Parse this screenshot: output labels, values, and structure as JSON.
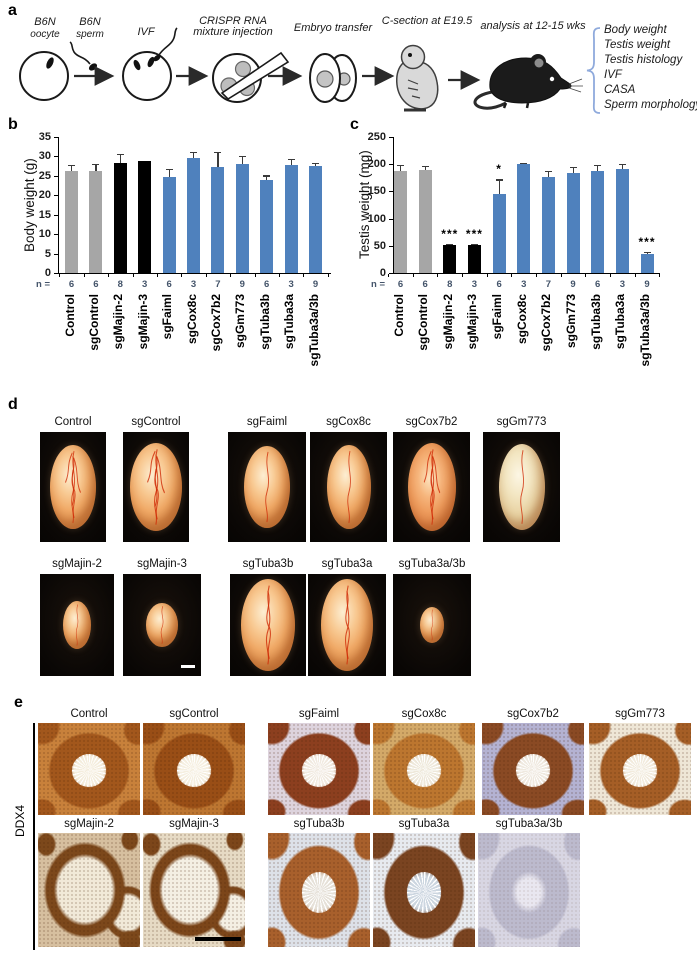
{
  "panel_a": {
    "letter": "a",
    "labels": {
      "oocyte1": "B6N",
      "oocyte2": "oocyte",
      "sperm1": "B6N",
      "sperm2": "sperm",
      "ivf": "IVF",
      "crispr1": "CRISPR RNA",
      "crispr2": "mixture injection",
      "embryo": "Embryo transfer",
      "csection": "C-section at E19.5",
      "analysis": "analysis at 12-15 wks"
    },
    "analysis_list": [
      "Body weight",
      "Testis weight",
      "Testis histology",
      "IVF",
      "CASA",
      "Sperm morphology"
    ],
    "brace_color": "#8FAADC"
  },
  "chart_data": [
    {
      "type": "bar",
      "panel_letter": "b",
      "title": "",
      "ylabel": "Body weight (g)",
      "ylim": [
        0,
        35
      ],
      "yticks": [
        0,
        5,
        10,
        15,
        20,
        25,
        30,
        35
      ],
      "n_prefix": "n =",
      "categories": [
        "Control",
        "sgControl",
        "sgMajin-2",
        "sgMajin-3",
        "sgFaiml",
        "sgCox8c",
        "sgCox7b2",
        "sgGm773",
        "sgTuba3b",
        "sgTuba3a",
        "sgTuba3a/3b"
      ],
      "values": [
        26.2,
        26.2,
        28.3,
        28.8,
        24.7,
        29.6,
        27.3,
        28.0,
        24.0,
        27.8,
        27.6
      ],
      "errors": [
        1.7,
        1.9,
        2.4,
        0,
        2.0,
        1.6,
        3.9,
        2.1,
        1.1,
        1.5,
        0.7
      ],
      "n": [
        6,
        6,
        8,
        3,
        6,
        3,
        7,
        9,
        6,
        3,
        9
      ],
      "bar_colors": [
        "#A6A6A6",
        "#A6A6A6",
        "#000000",
        "#000000",
        "#4F81BD",
        "#4F81BD",
        "#4F81BD",
        "#4F81BD",
        "#4F81BD",
        "#4F81BD",
        "#4F81BD"
      ],
      "significance": [
        "",
        "",
        "",
        "",
        "",
        "",
        "",
        "",
        "",
        "",
        ""
      ],
      "grid": false,
      "legend": "none"
    },
    {
      "type": "bar",
      "panel_letter": "c",
      "title": "",
      "ylabel": "Testis weight (mg)",
      "ylim": [
        0,
        250
      ],
      "yticks": [
        0,
        50,
        100,
        150,
        200,
        250
      ],
      "n_prefix": "n =",
      "categories": [
        "Control",
        "sgControl",
        "sgMajin-2",
        "sgMajin-3",
        "sgFaiml",
        "sgCox8c",
        "sgCox7b2",
        "sgGm773",
        "sgTuba3b",
        "sgTuba3a",
        "sgTuba3a/3b"
      ],
      "values": [
        188,
        190,
        51,
        52,
        146,
        201,
        176,
        183,
        188,
        192,
        35
      ],
      "errors": [
        10,
        7,
        2,
        2,
        26,
        2,
        11,
        12,
        10,
        9,
        4
      ],
      "n": [
        6,
        6,
        8,
        3,
        6,
        3,
        7,
        9,
        6,
        3,
        9
      ],
      "bar_colors": [
        "#A6A6A6",
        "#A6A6A6",
        "#000000",
        "#000000",
        "#4F81BD",
        "#4F81BD",
        "#4F81BD",
        "#4F81BD",
        "#4F81BD",
        "#4F81BD",
        "#4F81BD"
      ],
      "significance": [
        "",
        "",
        "***",
        "***",
        "*",
        "",
        "",
        "",
        "",
        "",
        "***"
      ],
      "grid": false,
      "legend": "none"
    }
  ],
  "panel_d": {
    "letter": "d",
    "row1": [
      {
        "label": "Control",
        "size": [
          46,
          84
        ],
        "tone": "warm",
        "vessels": 3
      },
      {
        "label": "sgControl",
        "size": [
          52,
          88
        ],
        "tone": "warm",
        "vessels": 3
      },
      {
        "label": "sgFaiml",
        "size": [
          46,
          82
        ],
        "tone": "warm",
        "vessels": 1
      },
      {
        "label": "sgCox8c",
        "size": [
          44,
          84
        ],
        "tone": "warm",
        "vessels": 1
      },
      {
        "label": "sgCox7b2",
        "size": [
          48,
          88
        ],
        "tone": "red",
        "vessels": 3
      },
      {
        "label": "sgGm773",
        "size": [
          46,
          86
        ],
        "tone": "pale",
        "vessels": 1
      }
    ],
    "row2": [
      {
        "label": "sgMajin-2",
        "size": [
          28,
          48
        ],
        "tone": "warm",
        "vessels": 1
      },
      {
        "label": "sgMajin-3",
        "size": [
          32,
          44
        ],
        "tone": "warm",
        "vessels": 1,
        "scale_bar": true
      },
      {
        "label": "sgTuba3b",
        "size": [
          54,
          92
        ],
        "tone": "warm",
        "vessels": 2
      },
      {
        "label": "sgTuba3a",
        "size": [
          52,
          92
        ],
        "tone": "warm",
        "vessels": 2
      },
      {
        "label": "sgTuba3a/3b",
        "size": [
          24,
          36
        ],
        "tone": "warm",
        "vessels": 1
      }
    ]
  },
  "panel_e": {
    "letter": "e",
    "row_label": "DDX4",
    "row1": [
      {
        "label": "Control",
        "outer": "#c8813b",
        "ring": "#a2571c",
        "lumen": "#f4eddd",
        "pattern": "full",
        "star": true
      },
      {
        "label": "sgControl",
        "outer": "#bd7631",
        "ring": "#994e16",
        "lumen": "#f5efe0",
        "pattern": "full",
        "star": true
      },
      {
        "label": "sgFaiml",
        "outer": "#ddd3dd",
        "ring": "#8c3f1f",
        "lumen": "#f1eae0",
        "pattern": "full",
        "star": true
      },
      {
        "label": "sgCox8c",
        "outer": "#d3a968",
        "ring": "#bc762f",
        "lumen": "#eee8da",
        "pattern": "full",
        "star": true
      },
      {
        "label": "sgCox7b2",
        "outer": "#b4b2d2",
        "ring": "#8a4a24",
        "lumen": "#efe9df",
        "pattern": "full",
        "star": true
      },
      {
        "label": "sgGm773",
        "outer": "#eee6d6",
        "ring": "#a55e26",
        "lumen": "#f2ebdd",
        "pattern": "full",
        "star": true
      }
    ],
    "row2": [
      {
        "label": "sgMajin-2",
        "outer": "#d6bf9f",
        "ring": "#7c481b",
        "lumen": "#f1e9d8",
        "pattern": "vacuole",
        "star": false
      },
      {
        "label": "sgMajin-3",
        "outer": "#e6dac4",
        "ring": "#7c461a",
        "lumen": "#f4efe3",
        "pattern": "vacuole",
        "star": false,
        "scale_bar": true
      },
      {
        "label": "sgTuba3b",
        "outer": "#dde1e8",
        "ring": "#a8602c",
        "lumen": "#e6e1d8",
        "pattern": "full",
        "star": true
      },
      {
        "label": "sgTuba3a",
        "outer": "#e7eaef",
        "ring": "#7a4421",
        "lumen": "#ccd6e0",
        "pattern": "full",
        "star": true
      },
      {
        "label": "sgTuba3a/3b",
        "outer": "#d8d6e3",
        "ring": "#bcbacd",
        "lumen": "#e9e7f0",
        "pattern": "full",
        "star": false,
        "speckle": 0.35
      }
    ]
  }
}
